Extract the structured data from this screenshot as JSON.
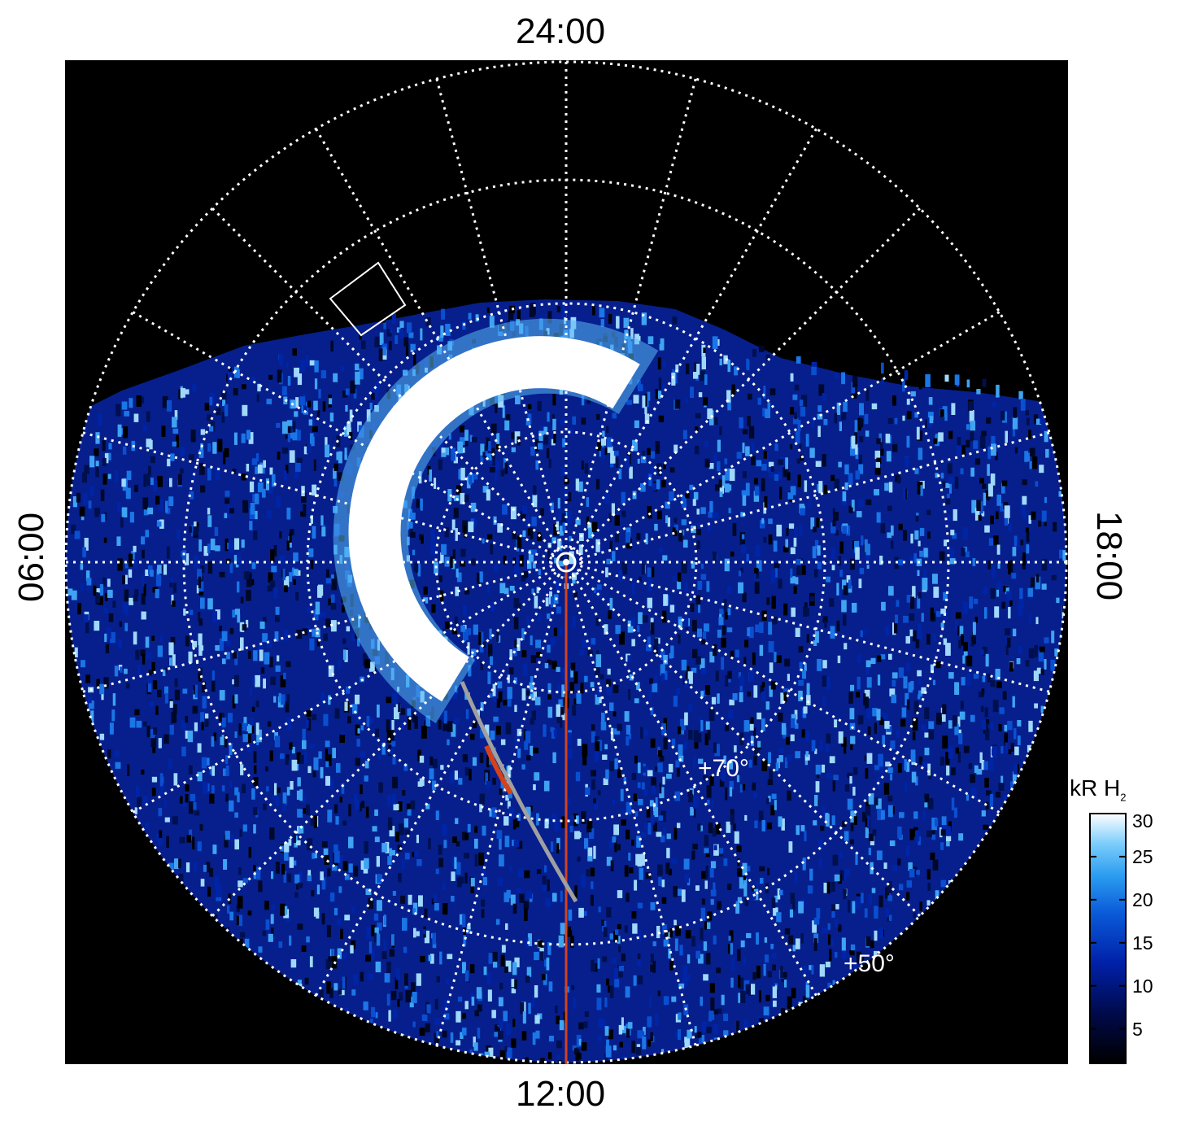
{
  "local_time_labels": {
    "top": "24:00",
    "bottom": "12:00",
    "left": "06:00",
    "right": "18:00"
  },
  "latitude_labels": [
    "+70°",
    "+50°"
  ],
  "colorbar": {
    "title_main": "kR H",
    "title_sub": "2",
    "ticks": [
      "5",
      "10",
      "15",
      "20",
      "25",
      "30"
    ],
    "range": [
      1,
      30
    ],
    "colors": [
      "#000000",
      "#000a4a",
      "#0020a8",
      "#0a5ad8",
      "#2a9cf0",
      "#7ccdfb",
      "#ffffff"
    ]
  },
  "colors": {
    "background": "#000000",
    "grid": "#ffffff",
    "meridian_line": "#d4421c",
    "footprint_track": "#a0a0a0",
    "footprint_highlight": "#d4421c"
  }
}
